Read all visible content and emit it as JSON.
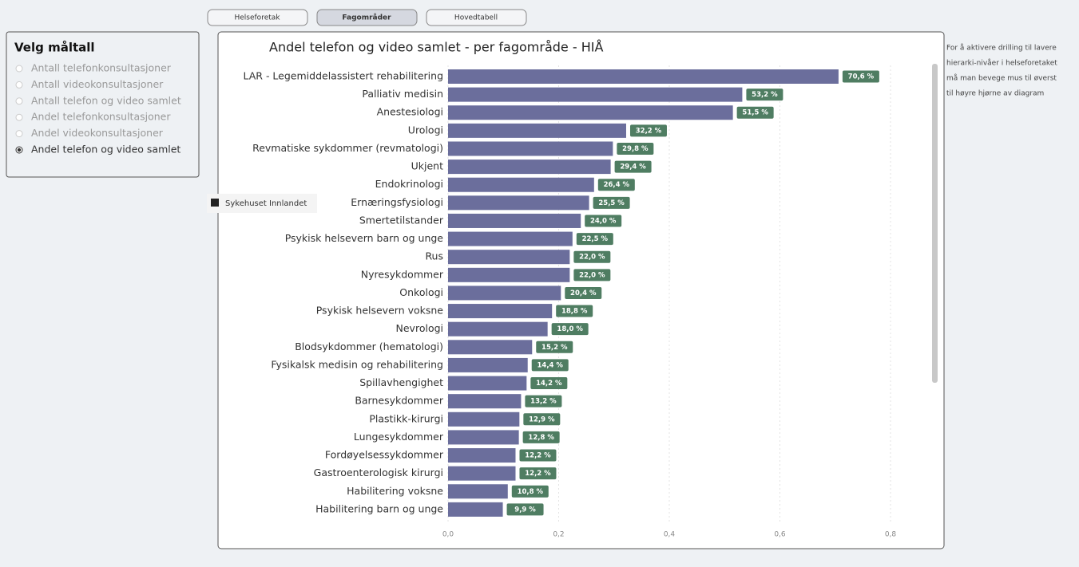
{
  "tabs": [
    "Helseforetak",
    "Fagområder",
    "Hovedtabell"
  ],
  "sidebar": {
    "title": "Velg måltall",
    "options": [
      "Antall telefonkonsultasjoner",
      "Antall videokonsultasjoner",
      "Antall telefon og video samlet",
      "Andel telefonkonsultasjoner",
      "Andel videokonsultasjoner",
      "Andel telefon og video samlet"
    ]
  },
  "tooltip": "Sykehuset Innlandet",
  "note": [
    "For å aktivere drilling til lavere",
    "hierarki-nivåer i helseforetaket",
    "må man bevege mus til øverst",
    "til høyre hjørne av diagram"
  ],
  "chart_data": {
    "type": "hbar",
    "title": "Andel telefon og video samlet - per fagområde - HIÅ",
    "color": "#6b6e9c",
    "label_color": "#4f7d62",
    "grid": true,
    "categories": [
      "LAR - Legemiddelassistert rehabilitering",
      "Palliativ medisin",
      "Anestesiologi",
      "Urologi",
      "Revmatiske sykdommer (revmatologi)",
      "Ukjent",
      "Endokrinologi",
      "Ernæringsfysiologi",
      "Smertetilstander",
      "Psykisk helsevern barn og unge",
      "Rus",
      "Nyresykdommer",
      "Onkologi",
      "Psykisk helsevern voksne",
      "Nevrologi",
      "Blodsykdommer (hematologi)",
      "Fysikalsk medisin og rehabilitering",
      "Spillavhengighet",
      "Barnesykdommer",
      "Plastikk-kirurgi",
      "Lungesykdommer",
      "Fordøyelsessykdommer",
      "Gastroenterologisk kirurgi",
      "Habilitering voksne",
      "Habilitering barn og unge"
    ],
    "values": [
      0.706,
      0.532,
      0.515,
      0.322,
      0.298,
      0.294,
      0.264,
      0.255,
      0.24,
      0.225,
      0.22,
      0.22,
      0.204,
      0.188,
      0.18,
      0.152,
      0.144,
      0.142,
      0.132,
      0.129,
      0.128,
      0.122,
      0.122,
      0.108,
      0.099
    ],
    "value_labels": [
      "70,6 %",
      "53,2 %",
      "51,5 %",
      "32,2 %",
      "29,8 %",
      "29,4 %",
      "26,4 %",
      "25,5 %",
      "24,0 %",
      "22,5 %",
      "22,0 %",
      "22,0 %",
      "20,4 %",
      "18,8 %",
      "18,0 %",
      "15,2 %",
      "14,4 %",
      "14,2 %",
      "13,2 %",
      "12,9 %",
      "12,8 %",
      "12,2 %",
      "12,2 %",
      "10,8 %",
      "9,9 %"
    ],
    "xlim": [
      0,
      0.8
    ],
    "xticks": [
      {
        "value": 0,
        "label": "0,0"
      },
      {
        "value": 0.2,
        "label": "0,2"
      },
      {
        "value": 0.4,
        "label": "0,4"
      },
      {
        "value": 0.6,
        "label": "0,6"
      },
      {
        "value": 0.8,
        "label": "0,8"
      }
    ]
  }
}
